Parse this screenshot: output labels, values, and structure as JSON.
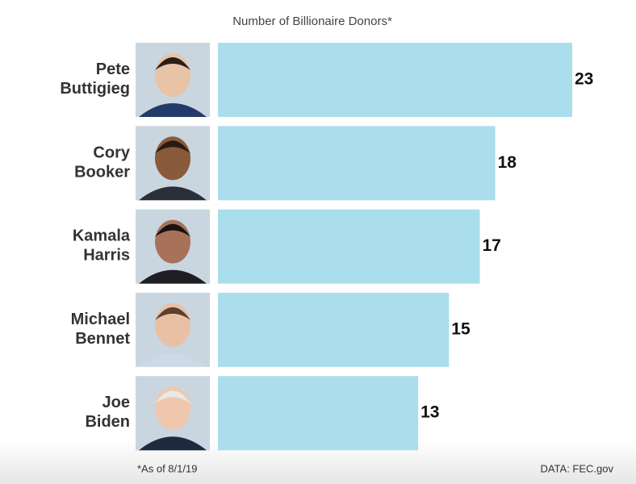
{
  "chart_data": {
    "type": "bar",
    "orientation": "horizontal",
    "title": "Number of Billionaire Donors*",
    "categories": [
      "Pete Buttigieg",
      "Cory Booker",
      "Kamala Harris",
      "Michael Bennet",
      "Joe Biden"
    ],
    "values": [
      23,
      18,
      17,
      15,
      13
    ],
    "color": "#abdeec",
    "xlim": [
      0,
      23
    ],
    "footnote": "*As of 8/1/19",
    "source": "DATA: FEC.gov"
  }
}
